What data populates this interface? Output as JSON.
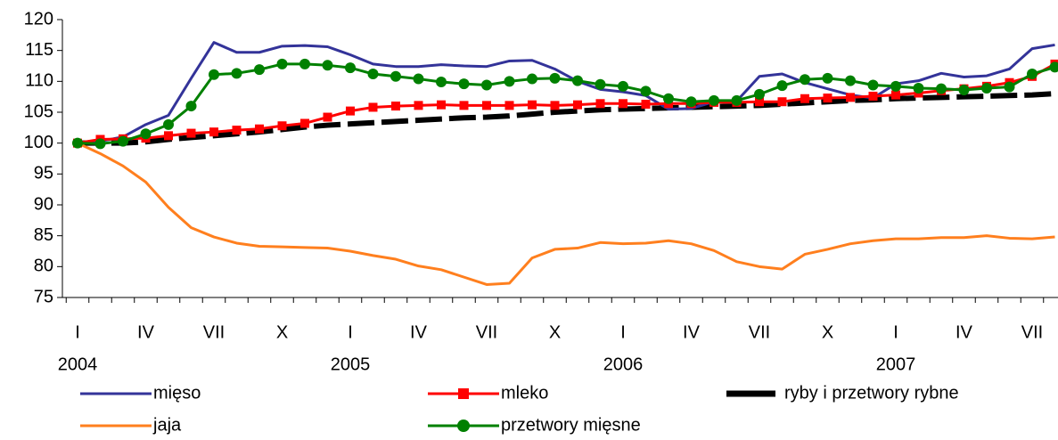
{
  "chart_data": {
    "type": "line",
    "categories": [
      "I",
      null,
      null,
      "IV",
      null,
      null,
      "VII",
      null,
      null,
      "X",
      null,
      null,
      "I",
      null,
      null,
      "IV",
      null,
      null,
      "VII",
      null,
      null,
      "X",
      null,
      null,
      "I",
      null,
      null,
      "IV",
      null,
      null,
      "VII",
      null,
      null,
      "X",
      null,
      null,
      "I",
      null,
      null,
      "IV",
      null,
      null,
      "VII",
      null
    ],
    "years": [
      "2004",
      "2005",
      "2006",
      "2007"
    ],
    "ylim": [
      75,
      120
    ],
    "yticks": [
      75,
      80,
      85,
      90,
      95,
      100,
      105,
      110,
      115,
      120
    ],
    "series": [
      {
        "name": "mięso",
        "color": "#333399",
        "style": "line",
        "values": [
          100,
          100.3,
          101,
          103,
          104.5,
          110.5,
          116.3,
          114.7,
          114.7,
          115.7,
          115.8,
          115.6,
          114.3,
          112.8,
          112.4,
          112.4,
          112.7,
          112.5,
          112.4,
          113.3,
          113.4,
          112,
          110,
          108.7,
          108.3,
          107.7,
          105.5,
          105.6,
          106.7,
          106.8,
          110.8,
          111.2,
          109.8,
          108.8,
          107.8,
          107.3,
          109.6,
          110.1,
          111.3,
          110.7,
          110.9,
          112,
          115.3,
          115.9
        ]
      },
      {
        "name": "mleko",
        "color": "#ff0000",
        "style": "square",
        "values": [
          100,
          100.6,
          100.7,
          100.8,
          101.2,
          101.6,
          101.8,
          102.1,
          102.3,
          102.8,
          103.2,
          104.2,
          105.2,
          105.8,
          106,
          106.1,
          106.2,
          106.1,
          106.1,
          106.1,
          106.2,
          106.1,
          106.2,
          106.4,
          106.4,
          106.3,
          106.4,
          106.4,
          106.6,
          106.6,
          106.7,
          106.7,
          107.2,
          107.3,
          107.4,
          107.6,
          107.8,
          108.1,
          108.5,
          108.8,
          109.2,
          109.8,
          110.8,
          112.8
        ]
      },
      {
        "name": "ryby i przetwory rybne",
        "color": "#000000",
        "style": "dash",
        "values": [
          100,
          100,
          100,
          100.2,
          100.6,
          100.9,
          101.2,
          101.5,
          101.8,
          102.2,
          102.6,
          102.9,
          103.1,
          103.3,
          103.5,
          103.7,
          103.9,
          104.1,
          104.2,
          104.4,
          104.7,
          105,
          105.2,
          105.4,
          105.5,
          105.6,
          105.7,
          105.8,
          105.9,
          106,
          106.1,
          106.3,
          106.5,
          106.7,
          106.9,
          107,
          107.2,
          107.3,
          107.4,
          107.5,
          107.6,
          107.7,
          107.8,
          108
        ]
      },
      {
        "name": "jaja",
        "color": "#ff7f1e",
        "style": "line",
        "values": [
          100,
          98.3,
          96.3,
          93.7,
          89.6,
          86.3,
          84.8,
          83.8,
          83.3,
          83.2,
          83.1,
          83,
          82.5,
          81.8,
          81.2,
          80.1,
          79.5,
          78.3,
          77.1,
          77.3,
          81.4,
          82.8,
          83,
          83.9,
          83.7,
          83.8,
          84.2,
          83.7,
          82.6,
          80.8,
          80,
          79.6,
          82,
          82.8,
          83.7,
          84.2,
          84.5,
          84.5,
          84.7,
          84.7,
          85,
          84.6,
          84.5,
          84.8
        ]
      },
      {
        "name": "przetwory mięsne",
        "color": "#008000",
        "style": "circle",
        "values": [
          100,
          99.9,
          100.3,
          101.5,
          103,
          106,
          111.1,
          111.3,
          111.9,
          112.8,
          112.8,
          112.6,
          112.2,
          111.2,
          110.8,
          110.4,
          109.9,
          109.6,
          109.4,
          110,
          110.4,
          110.5,
          110.1,
          109.5,
          109.2,
          108.4,
          107.2,
          106.7,
          106.9,
          106.9,
          107.9,
          109.3,
          110.3,
          110.5,
          110.1,
          109.4,
          109.2,
          108.9,
          108.8,
          108.6,
          108.9,
          109.1,
          111.2,
          112.3
        ]
      }
    ]
  }
}
